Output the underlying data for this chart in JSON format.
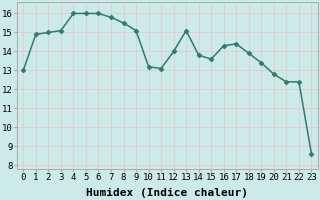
{
  "x": [
    0,
    1,
    2,
    3,
    4,
    5,
    6,
    7,
    8,
    9,
    10,
    11,
    12,
    13,
    14,
    15,
    16,
    17,
    18,
    19,
    20,
    21,
    22,
    23
  ],
  "y": [
    13.0,
    14.9,
    15.0,
    15.1,
    16.0,
    16.0,
    16.0,
    15.8,
    15.5,
    15.1,
    13.2,
    13.1,
    14.0,
    15.1,
    13.8,
    13.6,
    14.3,
    14.4,
    13.9,
    13.4,
    12.8,
    12.4,
    12.4,
    8.6
  ],
  "line_color": "#2d7d6e",
  "marker": "D",
  "marker_size": 2.5,
  "bg_color": "#cceae7",
  "grid_color": "#e8c8c8",
  "xlabel": "Humidex (Indice chaleur)",
  "xlabel_fontsize": 8,
  "ylabel_ticks": [
    8,
    9,
    10,
    11,
    12,
    13,
    14,
    15,
    16
  ],
  "xlim": [
    -0.5,
    23.5
  ],
  "ylim": [
    7.8,
    16.6
  ],
  "tick_fontsize": 6.5,
  "linewidth": 1.1,
  "spine_color": "#aaaaaa"
}
